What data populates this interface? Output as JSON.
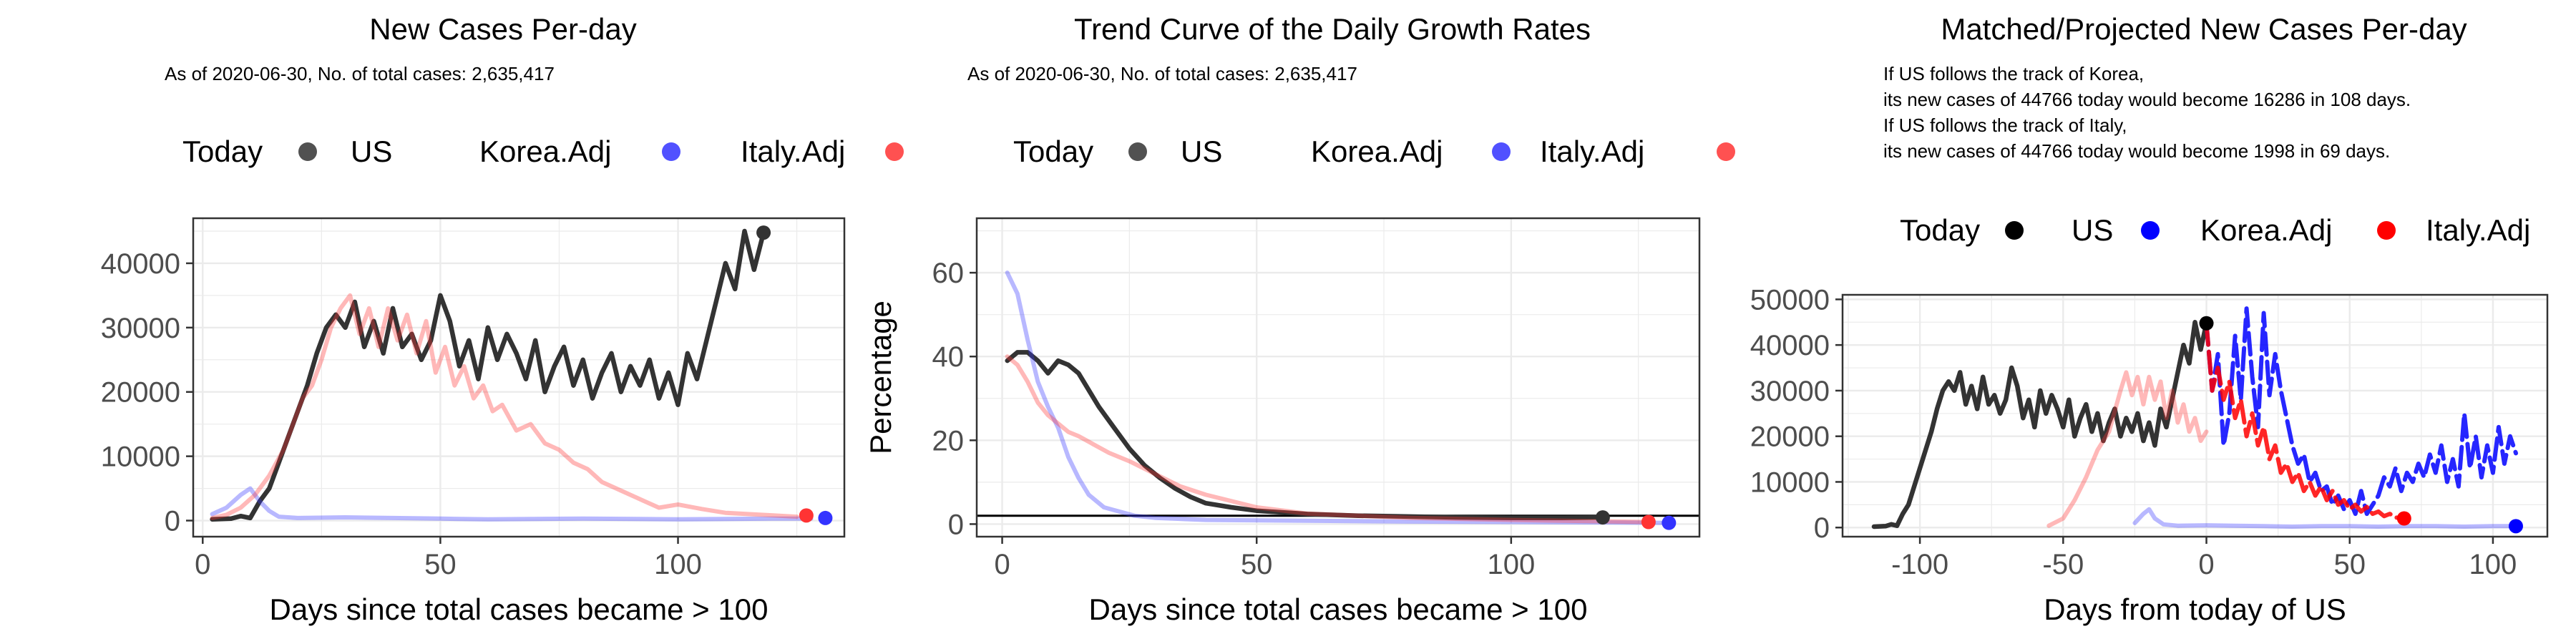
{
  "colors": {
    "US": "#333333",
    "Korea": "#3333ff",
    "Italy": "#ff3333",
    "grid": "#ebebeb"
  },
  "chart_data": [
    {
      "type": "line",
      "title": "New Cases Per-day",
      "subtitle": "As of 2020-06-30, No. of total cases: 2,635,417",
      "xlabel": "Days since total cases became > 100",
      "ylabel": "",
      "xlim": [
        -2,
        135
      ],
      "ylim": [
        -2500,
        47000
      ],
      "xticks": [
        0,
        50,
        100
      ],
      "yticks": [
        0,
        10000,
        20000,
        30000,
        40000
      ],
      "grid": true,
      "legend": {
        "title": "Today",
        "placement": "top",
        "entries": [
          "US",
          "Korea.Adj",
          "Italy.Adj"
        ]
      },
      "series": [
        {
          "key": "US",
          "x": [
            2,
            6,
            8,
            10,
            12,
            14,
            16,
            18,
            20,
            22,
            24,
            26,
            28,
            30,
            32,
            34,
            36,
            38,
            40,
            42,
            44,
            46,
            48,
            50,
            52,
            54,
            56,
            58,
            60,
            62,
            64,
            66,
            68,
            70,
            72,
            74,
            76,
            78,
            80,
            82,
            84,
            86,
            88,
            90,
            92,
            94,
            96,
            98,
            100,
            102,
            104,
            106,
            108,
            110,
            112,
            114,
            116,
            118
          ],
          "y": [
            200,
            300,
            700,
            400,
            3000,
            5000,
            9000,
            13000,
            17000,
            21000,
            26000,
            30000,
            32000,
            30000,
            34000,
            27000,
            31000,
            26000,
            33000,
            27000,
            29000,
            25000,
            28000,
            35000,
            31000,
            24000,
            28000,
            22000,
            30000,
            25000,
            29000,
            26000,
            22000,
            28000,
            20000,
            24000,
            27000,
            21000,
            25000,
            19000,
            23000,
            26000,
            20000,
            24000,
            21000,
            25000,
            19000,
            23000,
            18000,
            26000,
            22000,
            28000,
            34000,
            40000,
            36000,
            45000,
            39000,
            44766
          ]
        },
        {
          "key": "Korea.Adj",
          "x": [
            2,
            5,
            8,
            10,
            12,
            14,
            16,
            20,
            30,
            40,
            50,
            60,
            80,
            100,
            120,
            128
          ],
          "y": [
            1000,
            2000,
            4000,
            5000,
            3000,
            1500,
            600,
            400,
            500,
            400,
            300,
            200,
            300,
            200,
            300,
            300
          ]
        },
        {
          "key": "Italy.Adj",
          "x": [
            2,
            5,
            8,
            11,
            14,
            17,
            19,
            21,
            23,
            25,
            27,
            29,
            31,
            33,
            35,
            37,
            39,
            41,
            43,
            45,
            47,
            49,
            51,
            53,
            55,
            57,
            59,
            61,
            63,
            66,
            69,
            72,
            75,
            78,
            81,
            84,
            87,
            90,
            93,
            96,
            100,
            105,
            110,
            115,
            120,
            125
          ],
          "y": [
            400,
            900,
            2000,
            4000,
            7000,
            11000,
            15000,
            19000,
            21000,
            25000,
            30000,
            33000,
            35000,
            29000,
            33000,
            27000,
            33000,
            28000,
            32000,
            26000,
            31000,
            23000,
            27000,
            21000,
            24000,
            19000,
            21000,
            17000,
            18000,
            14000,
            15000,
            12000,
            11000,
            9000,
            8000,
            6000,
            5000,
            4000,
            3000,
            2000,
            2500,
            1800,
            1200,
            1000,
            800,
            600
          ]
        }
      ],
      "today": {
        "US": [
          118,
          44766
        ],
        "Korea.Adj": [
          131,
          400
        ],
        "Italy.Adj": [
          127,
          800
        ]
      }
    },
    {
      "type": "line",
      "title": "Trend Curve of the Daily Growth Rates",
      "subtitle": "As of 2020-06-30, No. of total cases: 2,635,417",
      "xlabel": "Days since total cases became > 100",
      "ylabel": "Percentage",
      "xlim": [
        -5,
        137
      ],
      "ylim": [
        -3,
        73
      ],
      "xticks": [
        0,
        50,
        100
      ],
      "yticks": [
        0,
        20,
        40,
        60
      ],
      "grid": true,
      "hline": 2,
      "legend": {
        "title": "Today",
        "placement": "top",
        "entries": [
          "US",
          "Korea.Adj",
          "Italy.Adj"
        ]
      },
      "series": [
        {
          "key": "US",
          "x": [
            1,
            3,
            5,
            7,
            9,
            11,
            13,
            15,
            17,
            19,
            22,
            25,
            28,
            31,
            34,
            37,
            40,
            45,
            50,
            60,
            70,
            80,
            90,
            100,
            110,
            118
          ],
          "y": [
            39,
            41,
            41,
            39,
            36,
            39,
            38,
            36,
            32,
            28,
            23,
            18,
            14,
            11,
            8.5,
            6.5,
            5,
            4,
            3.2,
            2.4,
            2,
            1.8,
            1.6,
            1.5,
            1.5,
            1.6
          ]
        },
        {
          "key": "Korea.Adj",
          "x": [
            1,
            3,
            5,
            7,
            9,
            11,
            13,
            15,
            17,
            20,
            23,
            26,
            30,
            40,
            60,
            80,
            100,
            120,
            131
          ],
          "y": [
            60,
            55,
            44,
            34,
            28,
            23,
            16,
            11,
            7,
            4,
            3,
            2,
            1.5,
            1,
            0.8,
            0.6,
            0.5,
            0.4,
            0.3
          ]
        },
        {
          "key": "Italy.Adj",
          "x": [
            1,
            3,
            5,
            7,
            9,
            11,
            13,
            15,
            18,
            21,
            25,
            30,
            35,
            40,
            50,
            60,
            80,
            100,
            127
          ],
          "y": [
            40,
            38,
            34,
            29,
            26,
            24,
            22,
            21,
            19,
            17,
            15,
            12,
            9,
            7,
            4,
            2.5,
            1.5,
            1,
            0.5
          ]
        }
      ],
      "today": {
        "US": [
          118,
          1.6
        ],
        "Korea.Adj": [
          131,
          0.3
        ],
        "Italy.Adj": [
          127,
          0.5
        ]
      }
    },
    {
      "type": "line",
      "title": "Matched/Projected New Cases Per-day",
      "annotations": [
        "If US follows the track of Korea,",
        "its new cases of 44766 today would become 16286 in 108 days.",
        "If US follows the track of Italy,",
        "its new cases of 44766 today would become 1998 in 69 days."
      ],
      "xlabel": "Days from today of US",
      "ylabel": "",
      "xlim": [
        -127,
        119
      ],
      "ylim": [
        -2000,
        51000
      ],
      "xticks": [
        -100,
        -50,
        0,
        50,
        100
      ],
      "yticks": [
        0,
        10000,
        20000,
        30000,
        40000,
        50000
      ],
      "grid": true,
      "legend": {
        "title": "Today",
        "placement": "top",
        "entries": [
          "US",
          "Korea.Adj",
          "Italy.Adj"
        ]
      },
      "series": [
        {
          "key": "US",
          "x": [
            -116,
            -112,
            -110,
            -108,
            -106,
            -104,
            -102,
            -100,
            -98,
            -96,
            -94,
            -92,
            -90,
            -88,
            -86,
            -84,
            -82,
            -80,
            -78,
            -76,
            -74,
            -72,
            -70,
            -68,
            -66,
            -64,
            -62,
            -60,
            -58,
            -56,
            -54,
            -52,
            -50,
            -48,
            -46,
            -44,
            -42,
            -40,
            -38,
            -36,
            -34,
            -32,
            -30,
            -28,
            -26,
            -24,
            -22,
            -20,
            -18,
            -16,
            -14,
            -12,
            -10,
            -8,
            -6,
            -4,
            -2,
            0
          ],
          "y": [
            200,
            300,
            700,
            400,
            3000,
            5000,
            9000,
            13000,
            17000,
            21000,
            26000,
            30000,
            32000,
            30000,
            34000,
            27000,
            31000,
            26000,
            33000,
            27000,
            29000,
            25000,
            28000,
            35000,
            31000,
            24000,
            28000,
            22000,
            30000,
            25000,
            29000,
            26000,
            22000,
            28000,
            20000,
            24000,
            27000,
            21000,
            25000,
            19000,
            23000,
            26000,
            20000,
            24000,
            21000,
            25000,
            19000,
            23000,
            18000,
            26000,
            22000,
            28000,
            34000,
            40000,
            36000,
            45000,
            39000,
            44766
          ]
        },
        {
          "key": "Korea.Adj",
          "x": [
            -25,
            -22,
            -20,
            -18,
            -15,
            -10,
            0,
            10,
            20,
            30,
            40,
            50,
            60,
            70,
            80,
            90,
            100,
            108
          ],
          "y": [
            1000,
            3000,
            4000,
            2000,
            700,
            400,
            500,
            400,
            300,
            200,
            300,
            300,
            200,
            300,
            300,
            200,
            300,
            300
          ]
        },
        {
          "key": "Italy.Adj",
          "x": [
            -55,
            -50,
            -46,
            -42,
            -38,
            -34,
            -30,
            -28,
            -26,
            -24,
            -22,
            -20,
            -18,
            -16,
            -14,
            -12,
            -10,
            -8,
            -6,
            -4,
            -2,
            0
          ],
          "y": [
            400,
            2000,
            6000,
            11000,
            17000,
            21000,
            30000,
            34000,
            29000,
            33000,
            27000,
            33000,
            28000,
            32000,
            24000,
            30000,
            23000,
            27000,
            21000,
            24000,
            19000,
            21000
          ]
        },
        {
          "key": "Korea.Adj",
          "projected": true,
          "x": [
            0,
            2,
            4,
            6,
            8,
            10,
            12,
            14,
            16,
            18,
            20,
            22,
            24,
            26,
            28,
            30,
            32,
            34,
            36,
            38,
            40,
            42,
            44,
            46,
            48,
            50,
            52,
            54,
            56,
            58,
            60,
            62,
            64,
            66,
            68,
            70,
            72,
            74,
            76,
            78,
            80,
            82,
            84,
            86,
            88,
            90,
            92,
            94,
            96,
            98,
            100,
            102,
            104,
            106,
            108
          ],
          "y": [
            44766,
            30000,
            38000,
            18000,
            25000,
            42000,
            28000,
            48000,
            33000,
            22000,
            47000,
            29000,
            38000,
            30000,
            24000,
            18000,
            14000,
            16000,
            10000,
            12000,
            8000,
            9000,
            5000,
            7000,
            4000,
            6000,
            3000,
            8000,
            3000,
            5000,
            7000,
            11000,
            9000,
            13000,
            8000,
            12000,
            10000,
            14000,
            11000,
            16000,
            12000,
            18000,
            10000,
            15000,
            9000,
            25000,
            13000,
            20000,
            11000,
            18000,
            12000,
            22000,
            14000,
            20000,
            16286
          ]
        },
        {
          "key": "Italy.Adj",
          "projected": true,
          "x": [
            0,
            2,
            4,
            6,
            8,
            10,
            12,
            14,
            16,
            18,
            20,
            22,
            24,
            26,
            28,
            30,
            32,
            34,
            36,
            38,
            40,
            42,
            44,
            46,
            48,
            50,
            52,
            54,
            56,
            58,
            60,
            62,
            64,
            66,
            69
          ],
          "y": [
            44766,
            30000,
            35000,
            28000,
            32000,
            24000,
            28000,
            20000,
            25000,
            18000,
            22000,
            15000,
            18000,
            12000,
            14000,
            10000,
            12000,
            8000,
            10000,
            7000,
            9000,
            6000,
            8000,
            5000,
            6000,
            4000,
            5000,
            3500,
            4500,
            3000,
            3500,
            2500,
            3000,
            2200,
            1998
          ]
        }
      ],
      "today": {
        "US": [
          0,
          44766
        ],
        "Korea.Adj": [
          108,
          300
        ],
        "Italy.Adj": [
          69,
          1998
        ]
      }
    }
  ]
}
